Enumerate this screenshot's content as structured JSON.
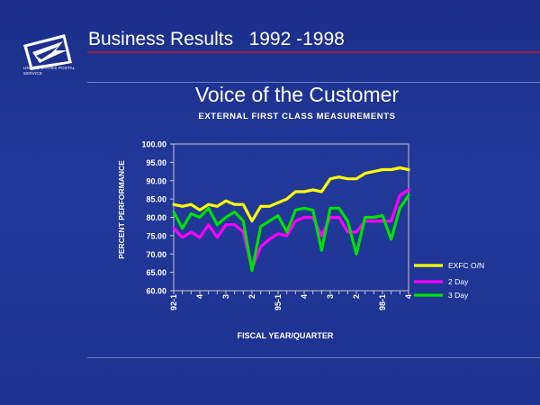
{
  "slide": {
    "title": "Business Results   1992 -1998",
    "logo_text": "UNITED STATES POSTAL SERVICE",
    "rule_color": "#9a1e3c"
  },
  "chart_data": {
    "type": "line",
    "title": "Voice of the Customer",
    "subtitle": "EXTERNAL FIRST CLASS MEASUREMENTS",
    "xlabel": "FISCAL YEAR/QUARTER",
    "ylabel": "PERCENT PERFORMANCE",
    "ylim": [
      60,
      100
    ],
    "yticks": [
      "100.00",
      "95.00",
      "90.00",
      "85.00",
      "80.00",
      "75.00",
      "70.00",
      "65.00",
      "60.00"
    ],
    "xtick_labels": [
      "92-1",
      "4",
      "3",
      "2",
      "95-1",
      "4",
      "3",
      "2",
      "98-1",
      "4"
    ],
    "xtick_positions": [
      0,
      3,
      6,
      9,
      12,
      15,
      18,
      21,
      24,
      27
    ],
    "grid": false,
    "legend_position": "right",
    "series": [
      {
        "name": "EXFC O/N",
        "color": "#ffff00",
        "values": [
          83.5,
          83,
          83.5,
          82,
          83.5,
          83,
          84.5,
          83.5,
          83.5,
          79,
          83,
          83,
          84,
          85,
          87,
          87,
          87.5,
          87,
          90.5,
          91,
          90.5,
          90.5,
          92,
          92.5,
          93,
          93,
          93.5,
          93
        ]
      },
      {
        "name": "2 Day",
        "color": "#ff00ff",
        "values": [
          77,
          74.5,
          76,
          74.5,
          78,
          74.5,
          78,
          78,
          76,
          66,
          72,
          74,
          75.5,
          75,
          79,
          80,
          80,
          75,
          80,
          80,
          76,
          76,
          79,
          79,
          79,
          79,
          86,
          87.5
        ]
      },
      {
        "name": "3 Day",
        "color": "#00e000",
        "values": [
          81.5,
          77,
          81,
          80,
          82.5,
          78,
          80,
          81.5,
          79,
          65.5,
          77.5,
          79,
          80.5,
          76,
          82,
          82.5,
          82,
          71,
          82.5,
          82.5,
          79,
          70,
          80,
          80,
          80.5,
          74,
          82.5,
          86
        ]
      }
    ]
  }
}
